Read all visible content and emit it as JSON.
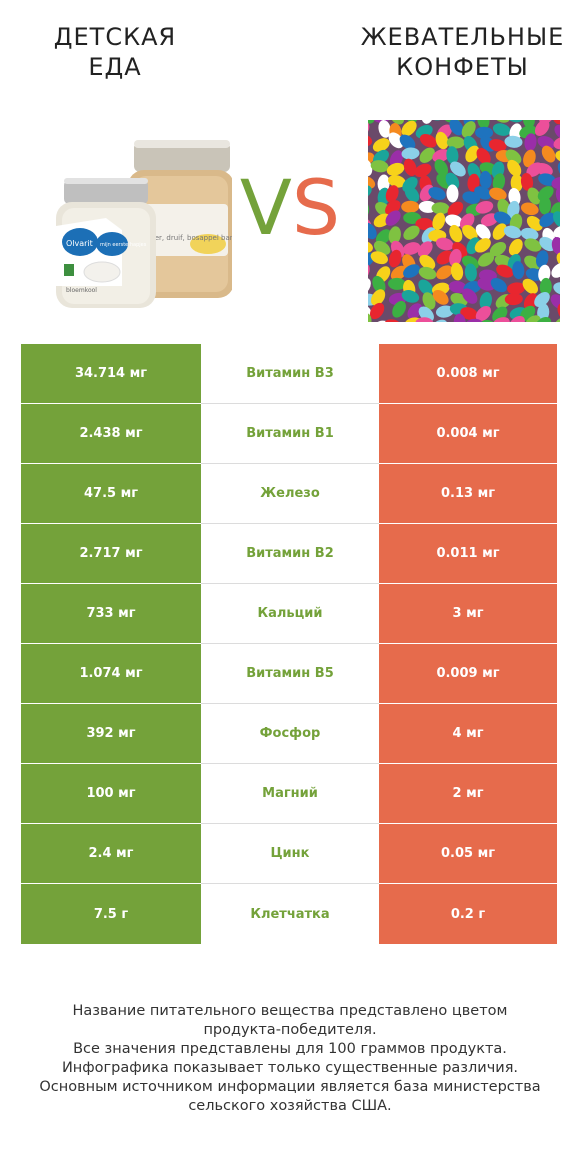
{
  "left_product": {
    "title_line1": "ДЕТСКАЯ",
    "title_line2": "ЕДА"
  },
  "right_product": {
    "title_line1": "ЖЕВАТЕЛЬНЫЕ",
    "title_line2": "КОНФЕТЫ"
  },
  "vs": {
    "v": "V",
    "s": "S"
  },
  "colors": {
    "left": "#74a23a",
    "right": "#e66b4c"
  },
  "jars": {
    "front_label_brand": "Olvarit",
    "front_label_text": "mijn eerste hapjes",
    "front_label_sub": "bloemkool",
    "back_label_text": "peer, druif, bosappel banaan"
  },
  "rows": [
    {
      "left": "34.714 мг",
      "nutrient": "Витамин B3",
      "right": "0.008 мг",
      "winner": "left"
    },
    {
      "left": "2.438 мг",
      "nutrient": "Витамин B1",
      "right": "0.004 мг",
      "winner": "left"
    },
    {
      "left": "47.5 мг",
      "nutrient": "Железо",
      "right": "0.13 мг",
      "winner": "left"
    },
    {
      "left": "2.717 мг",
      "nutrient": "Витамин B2",
      "right": "0.011 мг",
      "winner": "left"
    },
    {
      "left": "733 мг",
      "nutrient": "Кальций",
      "right": "3 мг",
      "winner": "left"
    },
    {
      "left": "1.074 мг",
      "nutrient": "Витамин B5",
      "right": "0.009 мг",
      "winner": "left"
    },
    {
      "left": "392 мг",
      "nutrient": "Фосфор",
      "right": "4 мг",
      "winner": "left"
    },
    {
      "left": "100 мг",
      "nutrient": "Магний",
      "right": "2 мг",
      "winner": "left"
    },
    {
      "left": "2.4 мг",
      "nutrient": "Цинк",
      "right": "0.05 мг",
      "winner": "left"
    },
    {
      "left": "7.5 г",
      "nutrient": "Клетчатка",
      "right": "0.2 г",
      "winner": "left"
    }
  ],
  "footer": [
    "Название питательного вещества представлено цветом",
    "продукта-победителя.",
    "Все значения представлены для 100 граммов продукта.",
    "Инфографика показывает только существенные различия.",
    "Основным источником информации является база министерства",
    "сельского хозяйства США."
  ]
}
